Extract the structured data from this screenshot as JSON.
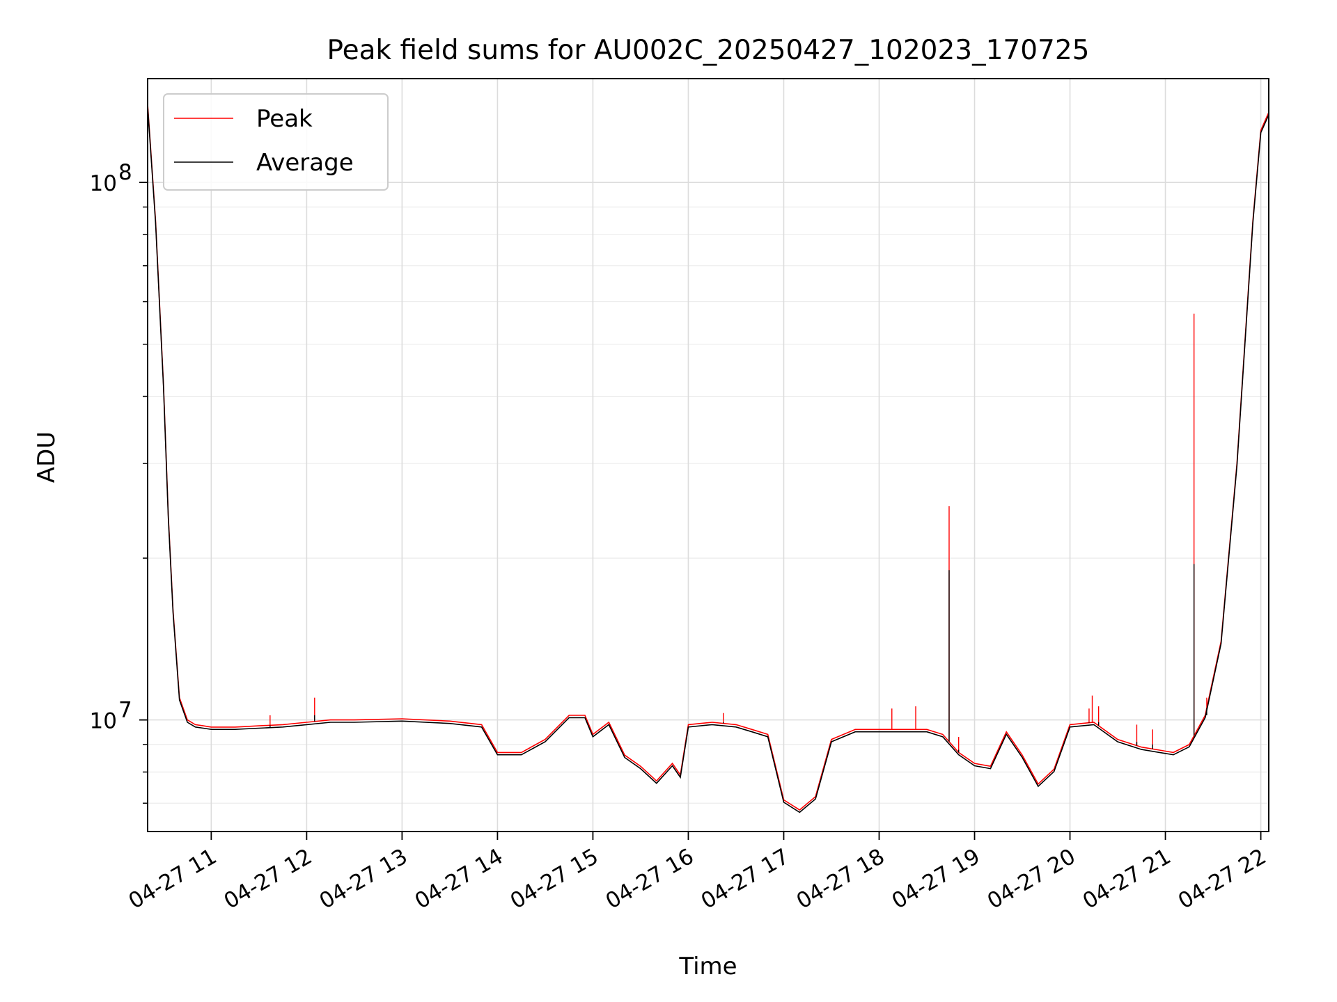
{
  "chart_data": {
    "type": "line",
    "title": "Peak field sums for AU002C_20250427_102023_170725",
    "xlabel": "Time",
    "ylabel": "ADU",
    "yscale": "log",
    "grid": true,
    "legend_placement": "top-left",
    "xlim": [
      "2025-04-27 10:20",
      "2025-04-27 22:05"
    ],
    "ylim": [
      6200000,
      156000000
    ],
    "x_ticks": [
      "04-27 11",
      "04-27 12",
      "04-27 13",
      "04-27 14",
      "04-27 15",
      "04-27 16",
      "04-27 17",
      "04-27 18",
      "04-27 19",
      "04-27 20",
      "04-27 21",
      "04-27 22"
    ],
    "y_ticks": [
      {
        "label_base": "10",
        "label_exp": "8",
        "value": 100000000
      },
      {
        "label_base": "10",
        "label_exp": "7",
        "value": 10000000
      }
    ],
    "series": [
      {
        "name": "Peak",
        "color": "#ff0000"
      },
      {
        "name": "Average",
        "color": "#000000"
      }
    ],
    "trend": {
      "x": [
        "2025-04-27 10:20",
        "2025-04-27 10:25",
        "2025-04-27 10:30",
        "2025-04-27 10:33",
        "2025-04-27 10:36",
        "2025-04-27 10:40",
        "2025-04-27 10:45",
        "2025-04-27 10:50",
        "2025-04-27 10:55",
        "2025-04-27 11:00",
        "2025-04-27 11:15",
        "2025-04-27 11:30",
        "2025-04-27 11:45",
        "2025-04-27 12:00",
        "2025-04-27 12:15",
        "2025-04-27 12:30",
        "2025-04-27 13:00",
        "2025-04-27 13:30",
        "2025-04-27 13:50",
        "2025-04-27 14:00",
        "2025-04-27 14:15",
        "2025-04-27 14:30",
        "2025-04-27 14:45",
        "2025-04-27 14:55",
        "2025-04-27 15:00",
        "2025-04-27 15:10",
        "2025-04-27 15:20",
        "2025-04-27 15:30",
        "2025-04-27 15:40",
        "2025-04-27 15:50",
        "2025-04-27 15:55",
        "2025-04-27 16:00",
        "2025-04-27 16:15",
        "2025-04-27 16:30",
        "2025-04-27 16:40",
        "2025-04-27 16:50",
        "2025-04-27 17:00",
        "2025-04-27 17:10",
        "2025-04-27 17:20",
        "2025-04-27 17:30",
        "2025-04-27 17:45",
        "2025-04-27 18:00",
        "2025-04-27 18:30",
        "2025-04-27 18:40",
        "2025-04-27 18:50",
        "2025-04-27 19:00",
        "2025-04-27 19:10",
        "2025-04-27 19:20",
        "2025-04-27 19:30",
        "2025-04-27 19:40",
        "2025-04-27 19:50",
        "2025-04-27 20:00",
        "2025-04-27 20:15",
        "2025-04-27 20:30",
        "2025-04-27 20:45",
        "2025-04-27 20:55",
        "2025-04-27 21:05",
        "2025-04-27 21:15",
        "2025-04-27 21:25",
        "2025-04-27 21:35",
        "2025-04-27 21:45",
        "2025-04-27 21:55",
        "2025-04-27 22:00",
        "2025-04-27 22:05"
      ],
      "y": [
        140000000,
        85000000,
        42000000,
        24000000,
        16000000,
        11000000,
        10000000,
        9800000,
        9750000,
        9700000,
        9700000,
        9750000,
        9800000,
        9900000,
        10000000,
        10000000,
        10050000,
        9950000,
        9800000,
        8700000,
        8700000,
        9200000,
        10200000,
        10200000,
        9400000,
        9900000,
        8600000,
        8200000,
        7700000,
        8300000,
        7900000,
        9800000,
        9900000,
        9800000,
        9600000,
        9400000,
        7100000,
        6800000,
        7200000,
        9200000,
        9600000,
        9600000,
        9600000,
        9400000,
        8700000,
        8300000,
        8200000,
        9500000,
        8600000,
        7600000,
        8100000,
        9800000,
        9900000,
        9200000,
        8900000,
        8800000,
        8700000,
        9000000,
        10200000,
        14000000,
        30000000,
        85000000,
        125000000,
        135000000
      ]
    },
    "spikes": [
      {
        "x": "2025-04-27 18:44",
        "peak": 25000000,
        "average": 19000000
      },
      {
        "x": "2025-04-27 21:18",
        "peak": 57000000,
        "average": 19500000
      },
      {
        "x": "2025-04-27 12:05",
        "peak": 11000000,
        "average": 10200000
      },
      {
        "x": "2025-04-27 11:37",
        "peak": 10200000,
        "average": 9700000
      },
      {
        "x": "2025-04-27 16:22",
        "peak": 10300000,
        "average": 9900000
      },
      {
        "x": "2025-04-27 18:08",
        "peak": 10500000,
        "average": 9600000
      },
      {
        "x": "2025-04-27 18:23",
        "peak": 10600000,
        "average": 9600000
      },
      {
        "x": "2025-04-27 18:50",
        "peak": 9300000,
        "average": 8800000
      },
      {
        "x": "2025-04-27 20:12",
        "peak": 10500000,
        "average": 9900000
      },
      {
        "x": "2025-04-27 20:14",
        "peak": 11100000,
        "average": 9900000
      },
      {
        "x": "2025-04-27 20:18",
        "peak": 10600000,
        "average": 9900000
      },
      {
        "x": "2025-04-27 20:42",
        "peak": 9800000,
        "average": 9100000
      },
      {
        "x": "2025-04-27 20:52",
        "peak": 9600000,
        "average": 9000000
      },
      {
        "x": "2025-04-27 21:26",
        "peak": 11000000,
        "average": 10200000
      }
    ]
  }
}
